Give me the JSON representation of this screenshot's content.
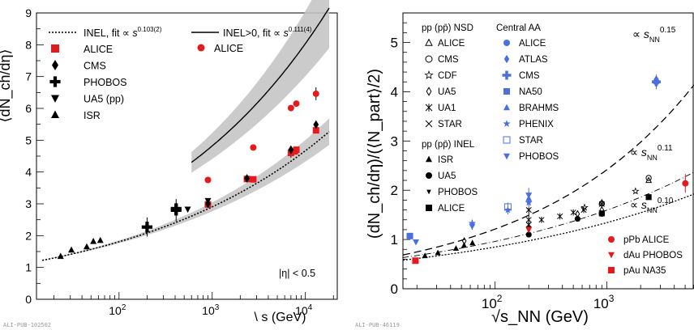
{
  "captions": [
    "ALI-PUB-102502",
    "ALI-PUB-46119"
  ],
  "chart_data": [
    {
      "type": "scatter",
      "xscale": "log",
      "xlim": [
        13,
        22000
      ],
      "ylim": [
        0,
        9
      ],
      "xlabel": "\\ s (GeV)",
      "ylabel": "⟨dN_ch/dη⟩",
      "xticks": [
        {
          "v": 100,
          "b": "10",
          "e": "2"
        },
        {
          "v": 1000,
          "b": "10",
          "e": "3"
        },
        {
          "v": 10000,
          "b": "10",
          "e": "4"
        }
      ],
      "yticks": [
        "0",
        "1",
        "2",
        "3",
        "4",
        "5",
        "6",
        "7",
        "8",
        "9"
      ],
      "annotation": "|η| < 0.5",
      "legend": {
        "fit_inel_prefix": "INEL, fit ∝ ",
        "fit_inel_exp": "0.103(2)",
        "fit_gt0_prefix": "INEL>0, fit ∝ ",
        "fit_gt0_exp": "0.111(4)",
        "s_var": "s",
        "items": [
          "ALICE",
          "CMS",
          "PHOBOS",
          "UA5 (pp)",
          "ISR"
        ],
        "gt0_items": [
          "ALICE"
        ]
      },
      "series": [
        {
          "name": "ALICE",
          "marker": "square",
          "color": "#e41a1c",
          "points": [
            [
              900,
              2.98
            ],
            [
              2360,
              3.78
            ],
            [
              2760,
              3.77
            ],
            [
              7000,
              4.6
            ],
            [
              7700,
              4.65
            ],
            [
              8000,
              4.7
            ],
            [
              13000,
              5.31
            ]
          ]
        },
        {
          "name": "CMS",
          "marker": "diamond",
          "color": "#000000",
          "points": [
            [
              900,
              3.0
            ],
            [
              2360,
              3.8
            ],
            [
              7000,
              4.7
            ],
            [
              13000,
              5.49
            ]
          ]
        },
        {
          "name": "PHOBOS",
          "marker": "cross",
          "color": "#000000",
          "points": [
            [
              200,
              2.27
            ],
            [
              410,
              2.8
            ],
            [
              410,
              2.85
            ]
          ]
        },
        {
          "name": "UA5 (pp)",
          "marker": "tridown",
          "color": "#000000",
          "points": [
            [
              546,
              2.83
            ],
            [
              900,
              3.1
            ]
          ]
        },
        {
          "name": "ISR",
          "marker": "triup",
          "color": "#000000",
          "points": [
            [
              23.6,
              1.35
            ],
            [
              30.8,
              1.55
            ],
            [
              45,
              1.65
            ],
            [
              53,
              1.82
            ],
            [
              63,
              1.85
            ]
          ]
        },
        {
          "name": "ALICE",
          "marker": "circle",
          "color": "#e41a1c",
          "points": [
            [
              900,
              3.75
            ],
            [
              2760,
              4.77
            ],
            [
              7000,
              6.01
            ],
            [
              8000,
              6.15
            ],
            [
              13000,
              6.46
            ]
          ]
        }
      ],
      "fits": [
        {
          "name": "INEL",
          "x": [
            15,
            18000
          ],
          "a": 0.7,
          "p": 0.103,
          "band": 0.08
        },
        {
          "name": "INEL>0",
          "x": [
            600,
            18000
          ],
          "a": 1.04,
          "p": 0.111,
          "band": 0.14
        }
      ]
    },
    {
      "type": "scatter",
      "xscale": "log",
      "xlim": [
        15,
        6000
      ],
      "ylim": [
        0,
        5.6
      ],
      "xlabel": "√s_NN  (GeV)",
      "ylabel": "(dN_ch/dη)/(⟨N_part⟩/2)",
      "xticks": [
        {
          "v": 100,
          "b": "10",
          "e": "2"
        },
        {
          "v": 1000,
          "b": "10",
          "e": "3"
        }
      ],
      "yticks": [
        "0",
        "1",
        "2",
        "3",
        "4",
        "5"
      ],
      "legend": {
        "pp_nsd_title": "pp (pp̄) NSD",
        "pp_nsd": [
          {
            "label": "ALICE",
            "m": "triup-open"
          },
          {
            "label": "CMS",
            "m": "circle-open"
          },
          {
            "label": "CDF",
            "m": "star-open"
          },
          {
            "label": "UA5",
            "m": "diamond-open"
          },
          {
            "label": "UA1",
            "m": "asterisk"
          },
          {
            "label": "STAR",
            "m": "x"
          }
        ],
        "pp_inel_title": "pp (pp̄) INEL",
        "pp_inel": [
          {
            "label": "ISR",
            "m": "triup"
          },
          {
            "label": "UA5",
            "m": "circle"
          },
          {
            "label": "PHOBOS",
            "m": "tridown-small"
          },
          {
            "label": "ALICE",
            "m": "square"
          }
        ],
        "aa_title": "Central AA",
        "aa": [
          {
            "label": "ALICE",
            "m": "circle"
          },
          {
            "label": "ATLAS",
            "m": "diamond"
          },
          {
            "label": "CMS",
            "m": "cross"
          },
          {
            "label": "NA50",
            "m": "square"
          },
          {
            "label": "BRAHMS",
            "m": "triup"
          },
          {
            "label": "PHENIX",
            "m": "star"
          },
          {
            "label": "STAR",
            "m": "square-open"
          },
          {
            "label": "PHOBOS",
            "m": "tridown"
          }
        ],
        "pa": [
          {
            "label": "pPb ALICE",
            "m": "circle"
          },
          {
            "label": "dAu PHOBOS",
            "m": "tridown"
          },
          {
            "label": "pAu NA35",
            "m": "square"
          }
        ]
      },
      "fit_labels": [
        {
          "prefix": "∝ ",
          "s": "s",
          "sub": "NN",
          "exp": "0.15"
        },
        {
          "prefix": "∝ ",
          "s": "s",
          "sub": "NN",
          "exp": "0.11"
        },
        {
          "prefix": "∝ ",
          "s": "s",
          "sub": "NN",
          "exp": "0.10"
        }
      ],
      "aa_color": "#4a6fe0",
      "aa_points": [
        {
          "x": 17.3,
          "y": 1.07,
          "m": "square"
        },
        {
          "x": 19.6,
          "y": 0.95,
          "m": "tridown"
        },
        {
          "x": 62.4,
          "y": 1.27,
          "m": "tridown"
        },
        {
          "x": 62.4,
          "y": 1.33,
          "m": "star"
        },
        {
          "x": 130,
          "y": 1.66,
          "m": "square-open"
        },
        {
          "x": 130,
          "y": 1.6,
          "m": "star"
        },
        {
          "x": 200,
          "y": 1.9,
          "m": "tridown"
        },
        {
          "x": 200,
          "y": 1.83,
          "m": "triup"
        },
        {
          "x": 200,
          "y": 1.75,
          "m": "star"
        },
        {
          "x": 2760,
          "y": 4.2,
          "m": "circle"
        },
        {
          "x": 2760,
          "y": 4.25,
          "m": "diamond"
        },
        {
          "x": 2760,
          "y": 4.2,
          "m": "cross"
        }
      ],
      "pp_points": [
        {
          "x": 23.6,
          "y": 0.67,
          "m": "triup"
        },
        {
          "x": 30.8,
          "y": 0.73,
          "m": "triup"
        },
        {
          "x": 44.7,
          "y": 0.82,
          "m": "triup"
        },
        {
          "x": 52.8,
          "y": 0.88,
          "m": "triup"
        },
        {
          "x": 62.7,
          "y": 0.93,
          "m": "triup"
        },
        {
          "x": 200,
          "y": 1.1,
          "m": "circle"
        },
        {
          "x": 546,
          "y": 1.42,
          "m": "circle"
        },
        {
          "x": 900,
          "y": 1.52,
          "m": "circle"
        },
        {
          "x": 900,
          "y": 1.53,
          "m": "square"
        },
        {
          "x": 2360,
          "y": 1.86,
          "m": "square"
        },
        {
          "x": 53,
          "y": 0.97,
          "m": "diamond-open"
        },
        {
          "x": 200,
          "y": 1.23,
          "m": "diamond-open"
        },
        {
          "x": 546,
          "y": 1.52,
          "m": "diamond-open"
        },
        {
          "x": 900,
          "y": 1.6,
          "m": "diamond-open"
        },
        {
          "x": 200,
          "y": 1.4,
          "m": "x"
        },
        {
          "x": 200,
          "y": 1.6,
          "m": "x"
        },
        {
          "x": 200,
          "y": 1.3,
          "m": "asterisk"
        },
        {
          "x": 260,
          "y": 1.4,
          "m": "asterisk"
        },
        {
          "x": 380,
          "y": 1.47,
          "m": "asterisk"
        },
        {
          "x": 500,
          "y": 1.55,
          "m": "asterisk"
        },
        {
          "x": 620,
          "y": 1.6,
          "m": "asterisk"
        },
        {
          "x": 900,
          "y": 1.72,
          "m": "asterisk"
        },
        {
          "x": 630,
          "y": 1.65,
          "m": "star-open"
        },
        {
          "x": 1800,
          "y": 1.98,
          "m": "star-open"
        },
        {
          "x": 900,
          "y": 1.75,
          "m": "triup-open"
        },
        {
          "x": 2360,
          "y": 2.2,
          "m": "triup-open"
        },
        {
          "x": 900,
          "y": 1.73,
          "m": "circle-open"
        },
        {
          "x": 2360,
          "y": 2.25,
          "m": "circle-open"
        },
        {
          "x": 7000,
          "y": 2.89,
          "m": "circle-open"
        }
      ],
      "pa_points": [
        {
          "x": 5020,
          "y": 2.14,
          "m": "circle"
        },
        {
          "x": 200,
          "y": 1.2,
          "m": "tridown"
        },
        {
          "x": 19.4,
          "y": 0.57,
          "m": "square"
        }
      ],
      "fits": [
        {
          "name": "AA",
          "a": 0.7,
          "p": 0.15,
          "dash": "9,5",
          "width": 1.3
        },
        {
          "name": "NSD",
          "a": 0.72,
          "p": 0.11,
          "dash": "7,3,1,3",
          "width": 0.9
        },
        {
          "name": "INEL",
          "a": 0.5,
          "p": 0.1,
          "dash": "2,2",
          "width": 1.3
        }
      ]
    }
  ]
}
